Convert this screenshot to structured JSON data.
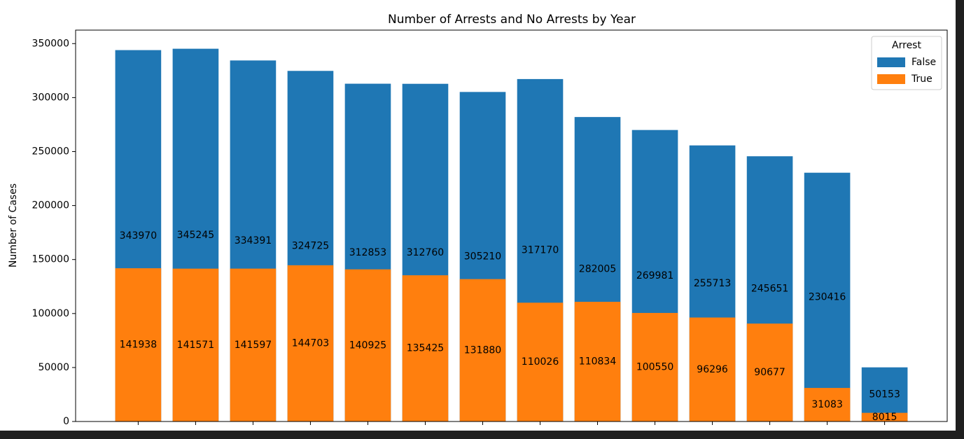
{
  "chart_data": {
    "type": "bar",
    "overlap": true,
    "title": "Number of Arrests and No Arrests by Year",
    "ylabel": "Number of Cases",
    "legend_title": "Arrest",
    "legend": "upper right",
    "categories": [
      null,
      null,
      null,
      null,
      null,
      null,
      null,
      null,
      null,
      null,
      null,
      null,
      null,
      null
    ],
    "series": [
      {
        "name": "False",
        "color": "#1f77b4",
        "values": [
          343970,
          345245,
          334391,
          324725,
          312853,
          312760,
          305210,
          317170,
          282005,
          269981,
          255713,
          245651,
          230416,
          50153
        ]
      },
      {
        "name": "True",
        "color": "#ff7f0e",
        "values": [
          141938,
          141571,
          141597,
          144703,
          140925,
          135425,
          131880,
          110026,
          110834,
          100550,
          96296,
          90677,
          31083,
          8015
        ]
      }
    ],
    "ylim": [
      0,
      362500
    ],
    "yticks": [
      0,
      50000,
      100000,
      150000,
      200000,
      250000,
      300000,
      350000
    ]
  }
}
